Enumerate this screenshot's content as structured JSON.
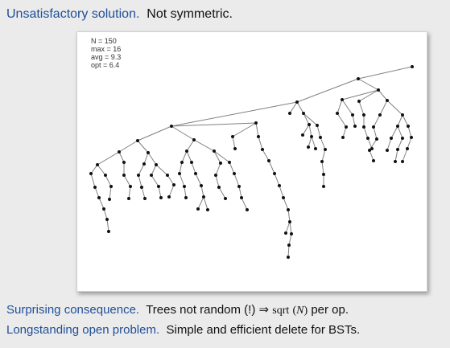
{
  "header": {
    "label": "Unsatisfactory solution.",
    "text": "Not symmetric."
  },
  "figure": {
    "stats": {
      "n": "N = 150",
      "max": "max = 16",
      "avg": "avg = 9.3",
      "opt": "opt = 6.4"
    },
    "colors": {
      "edge": "#808080",
      "node": "#111111"
    }
  },
  "footer": {
    "line1": {
      "label": "Surprising consequence.",
      "text_a": "Trees not random (!)",
      "arrow": "⇒",
      "func": "sqrt",
      "paren_open": "(",
      "var": "N",
      "paren_close": ")",
      "text_b": "per op."
    },
    "line2": {
      "label": "Longstanding open problem.",
      "text": "Simple and efficient delete for BSTs."
    }
  },
  "colors": {
    "accent": "#1f4f9a",
    "text": "#111111",
    "background": "#ebebeb"
  }
}
